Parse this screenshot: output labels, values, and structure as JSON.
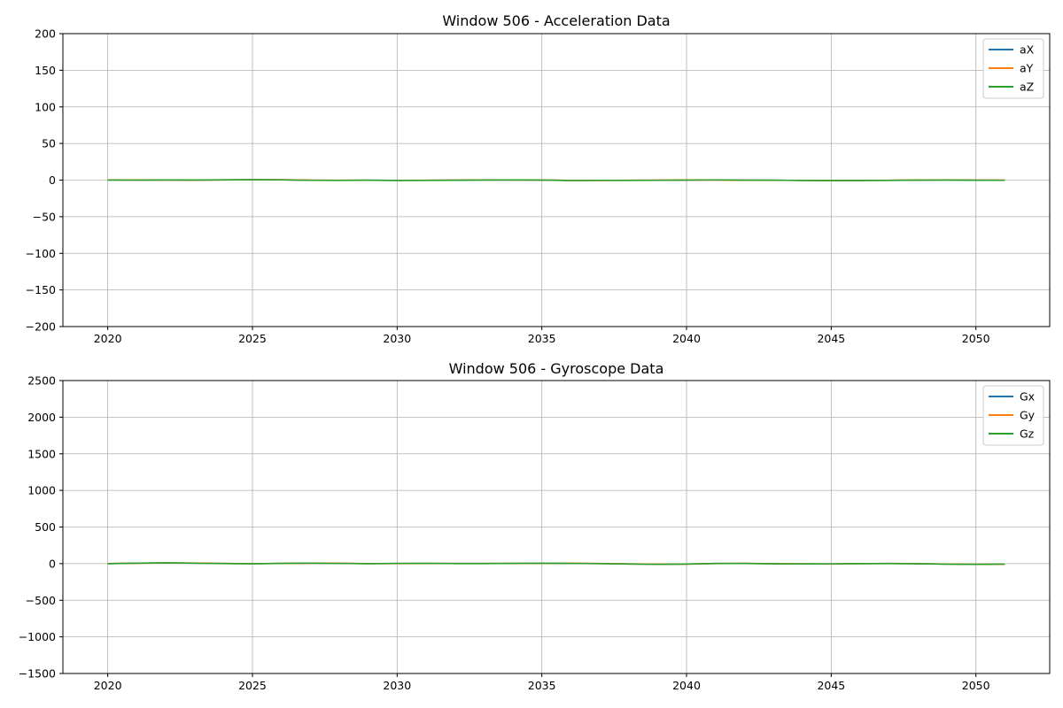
{
  "chart_data": [
    {
      "type": "line",
      "title": "Window 506 - Acceleration Data",
      "xlabel": "",
      "ylabel": "",
      "xlim": [
        2018.45,
        2052.55
      ],
      "ylim": [
        -200,
        200
      ],
      "xticks": [
        2020,
        2025,
        2030,
        2035,
        2040,
        2045,
        2050
      ],
      "xtick_labels": [
        "2020",
        "2025",
        "2030",
        "2035",
        "2040",
        "2045",
        "2050"
      ],
      "yticks": [
        -200,
        -150,
        -100,
        -50,
        0,
        50,
        100,
        150,
        200
      ],
      "ytick_labels": [
        "−200",
        "−150",
        "−100",
        "−50",
        "0",
        "50",
        "100",
        "150",
        "200"
      ],
      "grid": true,
      "legend": "top-right",
      "x": [
        2020,
        2021,
        2022,
        2023,
        2024,
        2025,
        2026,
        2027,
        2028,
        2029,
        2030,
        2031,
        2032,
        2033,
        2034,
        2035,
        2036,
        2037,
        2038,
        2039,
        2040,
        2041,
        2042,
        2043,
        2044,
        2045,
        2046,
        2047,
        2048,
        2049,
        2050,
        2051
      ],
      "series": [
        {
          "name": "aX",
          "color": "#1f77b4",
          "values": [
            0.2,
            0.1,
            0.1,
            0.0,
            0.3,
            0.5,
            0.4,
            -0.2,
            -0.3,
            -0.2,
            -0.4,
            -0.3,
            -0.1,
            0.2,
            0.1,
            0.0,
            -0.5,
            -0.4,
            -0.3,
            -0.2,
            0.1,
            0.2,
            -0.1,
            -0.2,
            -0.4,
            -0.6,
            -0.5,
            -0.3,
            0.0,
            0.2,
            -0.1,
            -0.2
          ]
        },
        {
          "name": "aY",
          "color": "#ff7f0e",
          "values": [
            0.3,
            0.2,
            0.0,
            -0.1,
            0.2,
            0.6,
            0.5,
            -0.1,
            -0.2,
            -0.3,
            -0.3,
            -0.2,
            0.0,
            0.3,
            0.2,
            0.1,
            -0.4,
            -0.5,
            -0.2,
            -0.1,
            0.2,
            0.1,
            -0.2,
            -0.3,
            -0.3,
            -0.5,
            -0.6,
            -0.2,
            0.1,
            0.3,
            0.0,
            -0.1
          ]
        },
        {
          "name": "aZ",
          "color": "#2ca02c",
          "values": [
            0.1,
            0.0,
            0.2,
            0.1,
            0.4,
            0.5,
            0.3,
            -0.3,
            -0.4,
            -0.1,
            -0.5,
            -0.4,
            -0.2,
            0.1,
            0.2,
            0.1,
            -0.6,
            -0.3,
            -0.4,
            -0.3,
            0.0,
            0.3,
            -0.1,
            -0.1,
            -0.5,
            -0.7,
            -0.4,
            -0.4,
            -0.1,
            0.1,
            -0.2,
            -0.3
          ]
        }
      ]
    },
    {
      "type": "line",
      "title": "Window 506 - Gyroscope Data",
      "xlabel": "",
      "ylabel": "",
      "xlim": [
        2018.45,
        2052.55
      ],
      "ylim": [
        -1500,
        2500
      ],
      "xticks": [
        2020,
        2025,
        2030,
        2035,
        2040,
        2045,
        2050
      ],
      "xtick_labels": [
        "2020",
        "2025",
        "2030",
        "2035",
        "2040",
        "2045",
        "2050"
      ],
      "yticks": [
        -1500,
        -1000,
        -500,
        0,
        500,
        1000,
        1500,
        2000,
        2500
      ],
      "ytick_labels": [
        "−1500",
        "−1000",
        "−500",
        "0",
        "500",
        "1000",
        "1500",
        "2000",
        "2500"
      ],
      "grid": true,
      "legend": "top-right",
      "x": [
        2020,
        2021,
        2022,
        2023,
        2024,
        2025,
        2026,
        2027,
        2028,
        2029,
        2030,
        2031,
        2032,
        2033,
        2034,
        2035,
        2036,
        2037,
        2038,
        2039,
        2040,
        2041,
        2042,
        2043,
        2044,
        2045,
        2046,
        2047,
        2048,
        2049,
        2050,
        2051
      ],
      "series": [
        {
          "name": "Gx",
          "color": "#1f77b4",
          "values": [
            0,
            6,
            10,
            7,
            2,
            -1,
            3,
            6,
            4,
            0,
            2,
            3,
            2,
            2,
            3,
            4,
            4,
            1,
            -4,
            -8,
            -6,
            2,
            3,
            -1,
            -3,
            -4,
            0,
            2,
            -1,
            -6,
            -9,
            -7
          ]
        },
        {
          "name": "Gy",
          "color": "#ff7f0e",
          "values": [
            1,
            5,
            9,
            8,
            3,
            0,
            2,
            5,
            5,
            1,
            1,
            2,
            3,
            3,
            2,
            3,
            5,
            2,
            -3,
            -7,
            -7,
            1,
            4,
            0,
            -2,
            -5,
            -1,
            3,
            0,
            -5,
            -8,
            -8
          ]
        },
        {
          "name": "Gz",
          "color": "#2ca02c",
          "values": [
            -1,
            7,
            11,
            6,
            1,
            -2,
            4,
            7,
            3,
            -1,
            3,
            4,
            1,
            1,
            4,
            5,
            3,
            0,
            -5,
            -9,
            -5,
            3,
            2,
            -2,
            -4,
            -3,
            1,
            1,
            -2,
            -7,
            -10,
            -6
          ]
        }
      ]
    }
  ]
}
